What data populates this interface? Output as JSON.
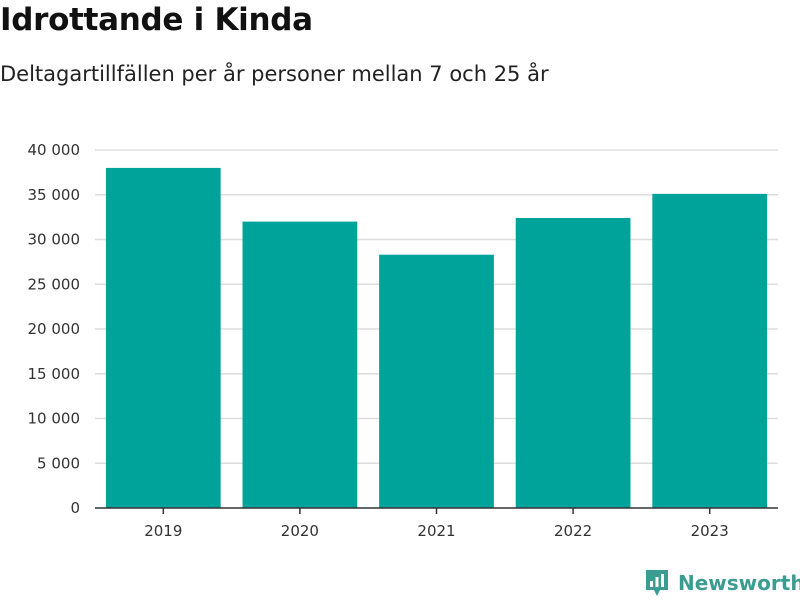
{
  "title": "Idrottande i Kinda",
  "subtitle": "Deltagartillfällen per år personer mellan 7 och 25 år",
  "brand": {
    "name": "Newsworthy"
  },
  "colors": {
    "bar": "#00a39a",
    "grid": "#dddddd",
    "axis": "#333333",
    "brand": "#3b9d92"
  },
  "chart_data": {
    "type": "bar",
    "categories": [
      "2019",
      "2020",
      "2021",
      "2022",
      "2023"
    ],
    "values": [
      38000,
      32000,
      28300,
      32400,
      35100
    ],
    "ylim": [
      0,
      40000
    ],
    "yticks": [
      0,
      5000,
      10000,
      15000,
      20000,
      25000,
      30000,
      35000,
      40000
    ],
    "ytick_labels": [
      "0",
      "5 000",
      "10 000",
      "15 000",
      "20 000",
      "25 000",
      "30 000",
      "35 000",
      "40 000"
    ],
    "grid": true,
    "legend": "none"
  }
}
